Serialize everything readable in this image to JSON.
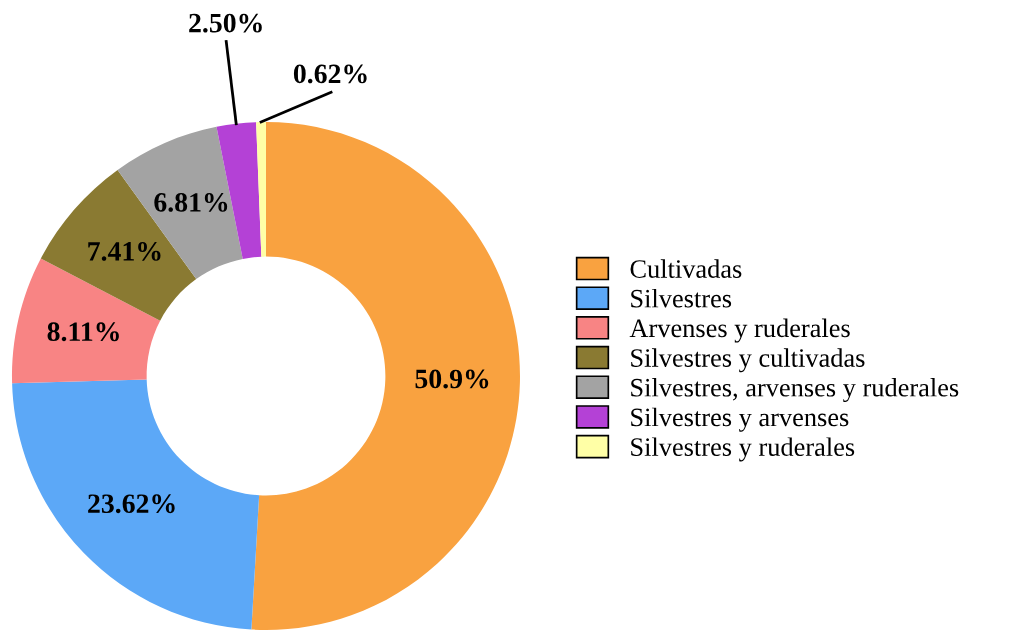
{
  "chart_data": {
    "type": "donut",
    "categories": [
      "Cultivadas",
      "Silvestres",
      "Arvenses y ruderales",
      "Silvestres y cultivadas",
      "Silvestres, arvenses y ruderales",
      "Silvestres y arvenses",
      "Silvestres y ruderales"
    ],
    "values": [
      50.9,
      23.62,
      8.11,
      7.41,
      6.81,
      2.5,
      0.62
    ],
    "colors": [
      "#f9a240",
      "#5ca8f7",
      "#f88484",
      "#8a7a32",
      "#a3a3a3",
      "#b441d6",
      "#ffffa6"
    ],
    "value_labels": [
      "50.9%",
      "23.62%",
      "8.11%",
      "7.41%",
      "6.81%",
      "2.50%",
      "0.62%"
    ],
    "legend": "right"
  }
}
